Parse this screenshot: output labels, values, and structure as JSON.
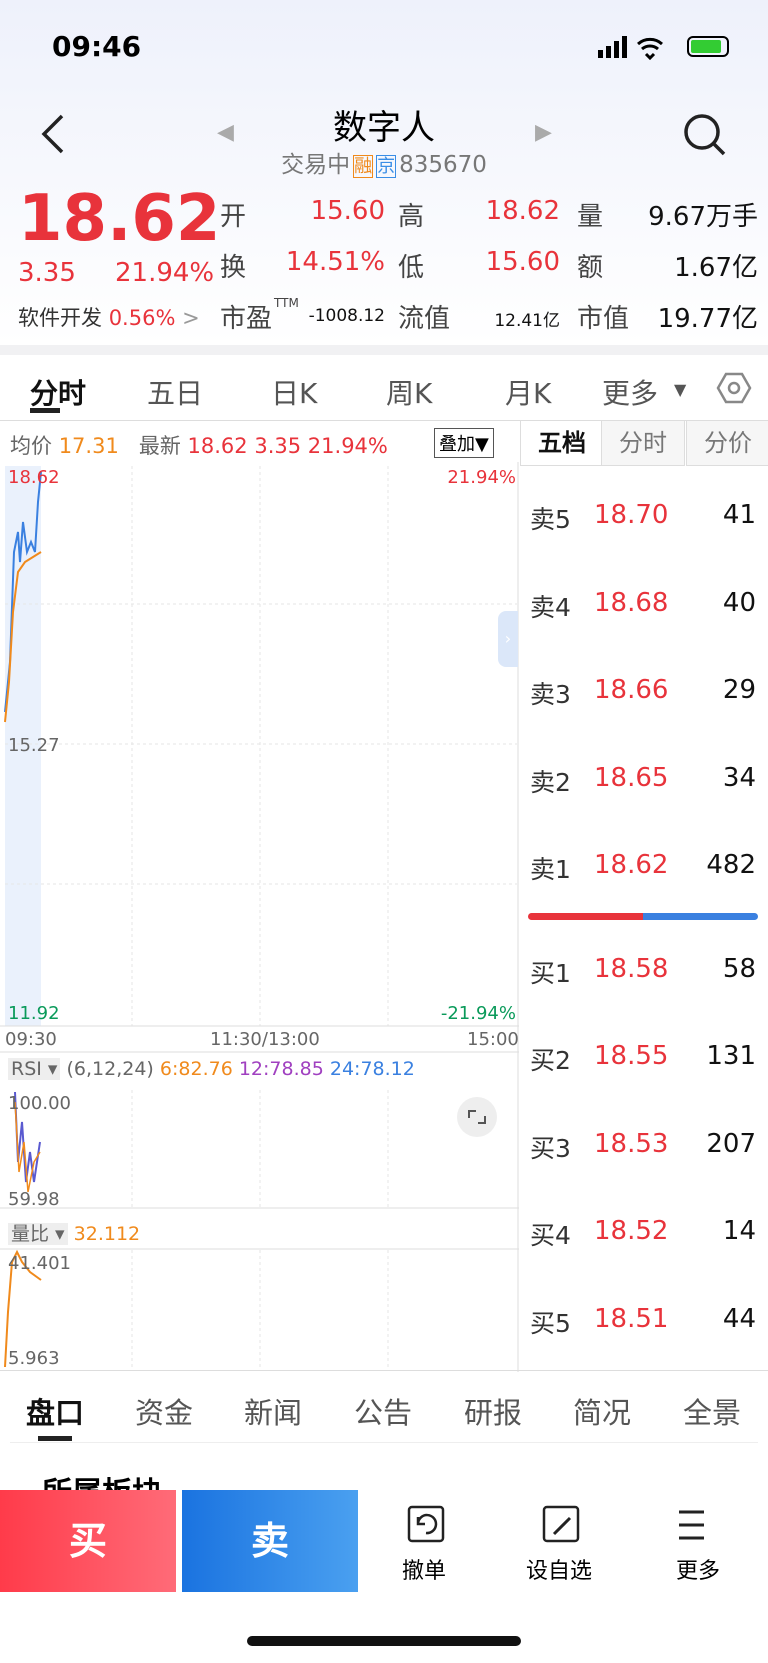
{
  "status_bar": {
    "time": "09:46"
  },
  "header": {
    "title": "数字人",
    "status": "交易中",
    "badges": [
      "融",
      "京"
    ],
    "code": "835670"
  },
  "quote": {
    "price": "18.62",
    "change": "3.35",
    "change_pct": "21.94%",
    "sector": "软件开发",
    "sector_pct": "0.56%",
    "stats": [
      [
        {
          "label": "开",
          "value": "15.60"
        },
        {
          "label": "高",
          "value": "18.62"
        },
        {
          "label": "量",
          "value": "9.67万手"
        }
      ],
      [
        {
          "label": "换",
          "value": "14.51%"
        },
        {
          "label": "低",
          "value": "15.60"
        },
        {
          "label": "额",
          "value": "1.67亿"
        }
      ],
      [
        {
          "label": "市盈",
          "sup": "TTM",
          "value": "-1008.12"
        },
        {
          "label": "流值",
          "value": "12.41亿"
        },
        {
          "label": "市值",
          "value": "19.77亿"
        }
      ]
    ]
  },
  "tabs": [
    "分时",
    "五日",
    "日K",
    "周K",
    "月K",
    "更多"
  ],
  "chart": {
    "avg_label": "均价",
    "avg": "17.31",
    "last_label": "最新",
    "last": "18.62",
    "change": "3.35",
    "change_pct": "21.94%",
    "overlay": "叠加",
    "top_price": "18.62",
    "top_pct": "21.94%",
    "mid_price": "15.27",
    "bottom_price": "11.92",
    "bottom_pct": "-21.94%",
    "times": [
      "09:30",
      "11:30/13:00",
      "15:00"
    ]
  },
  "rsi": {
    "label": "RSI",
    "params": "(6,12,24)",
    "rsi6": "6:82.76",
    "rsi12": "12:78.85",
    "rsi24": "24:78.12",
    "top": "100.00",
    "bottom": "59.98"
  },
  "volume_ratio": {
    "label": "量比",
    "value": "32.112",
    "top": "41.401",
    "bottom": "5.963"
  },
  "order_book": {
    "tabs": [
      "五档",
      "分时",
      "分价"
    ],
    "asks": [
      [
        "卖5",
        "18.70",
        "41"
      ],
      [
        "卖4",
        "18.68",
        "40"
      ],
      [
        "卖3",
        "18.66",
        "29"
      ],
      [
        "卖2",
        "18.65",
        "34"
      ],
      [
        "卖1",
        "18.62",
        "482"
      ]
    ],
    "bids": [
      [
        "买1",
        "18.58",
        "58"
      ],
      [
        "买2",
        "18.55",
        "131"
      ],
      [
        "买3",
        "18.53",
        "207"
      ],
      [
        "买4",
        "18.52",
        "14"
      ],
      [
        "买5",
        "18.51",
        "44"
      ]
    ]
  },
  "detail_tabs": [
    "盘口",
    "资金",
    "新闻",
    "公告",
    "研报",
    "简况",
    "全景"
  ],
  "section_title": "所属板块",
  "actions": {
    "buy": "买",
    "sell": "卖",
    "cancel": "撤单",
    "watch": "设自选",
    "more": "更多"
  }
}
